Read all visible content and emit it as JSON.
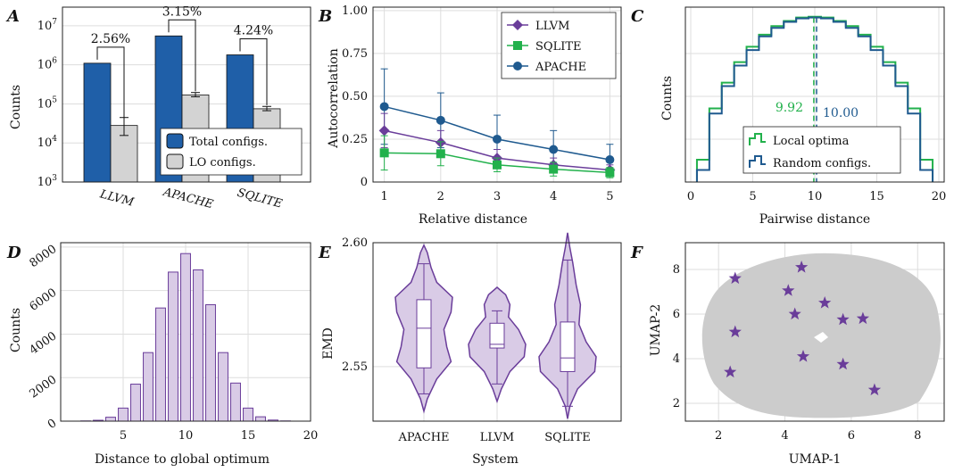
{
  "colors": {
    "blue": "#1f5fa8",
    "gray": "#d3d3d3",
    "purple": "#6a3d9a",
    "green": "#22b14c",
    "navy": "#1f5a8f",
    "umap_gray": "#cccccc",
    "violin_fill": "#d9cbe6"
  },
  "chart_data": [
    {
      "panel": "A",
      "type": "bar",
      "ylabel": "Counts",
      "yscale": "log",
      "ylim": [
        1000,
        30000000
      ],
      "yticks": [
        "10^3",
        "10^4",
        "10^5",
        "10^6",
        "10^7"
      ],
      "categories": [
        "LLVM",
        "APACHE",
        "SQLITE"
      ],
      "series": [
        {
          "name": "Total configs.",
          "values": [
            1100000,
            5500000,
            1800000
          ]
        },
        {
          "name": "LO configs.",
          "values": [
            28000,
            170000,
            75000
          ]
        }
      ],
      "annotations": [
        "2.56%",
        "3.15%",
        "4.24%"
      ],
      "legend": "bottom-right"
    },
    {
      "panel": "B",
      "type": "line",
      "xlabel": "Relative distance",
      "ylabel": "Autocorrelation",
      "x": [
        1,
        2,
        3,
        4,
        5
      ],
      "xlim": [
        0.8,
        5.2
      ],
      "ylim": [
        0,
        1.02
      ],
      "yticks": [
        "0",
        "0.25",
        "0.50",
        "0.75",
        "1.00"
      ],
      "series": [
        {
          "name": "LLVM",
          "values": [
            0.3,
            0.23,
            0.14,
            0.1,
            0.07
          ],
          "err": [
            0.1,
            0.07,
            0.05,
            0.04,
            0.03
          ]
        },
        {
          "name": "SQLITE",
          "values": [
            0.17,
            0.165,
            0.1,
            0.075,
            0.055
          ],
          "err": [
            0.1,
            0.07,
            0.04,
            0.04,
            0.03
          ]
        },
        {
          "name": "APACHE",
          "values": [
            0.44,
            0.36,
            0.25,
            0.19,
            0.13
          ],
          "err": [
            0.22,
            0.16,
            0.14,
            0.11,
            0.09
          ]
        }
      ],
      "legend": "top-right"
    },
    {
      "panel": "C",
      "type": "area",
      "xlabel": "Pairwise distance",
      "ylabel": "Counts",
      "xlim": [
        0,
        20
      ],
      "bins": [
        1,
        2,
        3,
        4,
        5,
        6,
        7,
        8,
        9,
        10,
        11,
        12,
        13,
        14,
        15,
        16,
        17,
        18,
        19
      ],
      "series": [
        {
          "name": "Local optima",
          "values": [
            0.13,
            0.43,
            0.58,
            0.7,
            0.79,
            0.86,
            0.91,
            0.94,
            0.96,
            0.965,
            0.96,
            0.94,
            0.91,
            0.86,
            0.79,
            0.7,
            0.58,
            0.43,
            0.13
          ],
          "mean": "9.92"
        },
        {
          "name": "Random configs.",
          "values": [
            0.07,
            0.4,
            0.56,
            0.68,
            0.77,
            0.85,
            0.9,
            0.935,
            0.955,
            0.96,
            0.955,
            0.935,
            0.9,
            0.85,
            0.77,
            0.68,
            0.56,
            0.4,
            0.07
          ],
          "mean": "10.00"
        }
      ],
      "legend": "bottom-center"
    },
    {
      "panel": "D",
      "type": "bar",
      "xlabel": "Distance to global optimum",
      "ylabel": "Counts",
      "xlim": [
        0,
        20
      ],
      "ylim": [
        0,
        8200
      ],
      "bins": [
        2,
        3,
        4,
        5,
        6,
        7,
        8,
        9,
        10,
        11,
        12,
        13,
        14,
        15,
        16,
        17,
        18
      ],
      "values": [
        10,
        40,
        180,
        600,
        1700,
        3150,
        5200,
        6850,
        7700,
        6950,
        5350,
        3150,
        1750,
        600,
        200,
        50,
        10
      ]
    },
    {
      "panel": "E",
      "type": "violin",
      "xlabel": "System",
      "ylabel": "EMD",
      "ylim": [
        2.528,
        2.6
      ],
      "yticks": [
        "2.55",
        "2.60"
      ],
      "categories": [
        "APACHE",
        "LLVM",
        "SQLITE"
      ],
      "boxes": [
        {
          "q1": 2.5495,
          "median": 2.5655,
          "q3": 2.577,
          "wlo": 2.539,
          "whi": 2.5915
        },
        {
          "q1": 2.5575,
          "median": 2.559,
          "q3": 2.5675,
          "wlo": 2.543,
          "whi": 2.5725
        },
        {
          "q1": 2.548,
          "median": 2.5535,
          "q3": 2.568,
          "wlo": 2.534,
          "whi": 2.593
        }
      ]
    },
    {
      "panel": "F",
      "type": "scatter",
      "xlabel": "UMAP-1",
      "ylabel": "UMAP-2",
      "xlim": [
        1,
        8.8
      ],
      "ylim": [
        1.2,
        9.2
      ],
      "xticks": [
        "2",
        "4",
        "6",
        "8"
      ],
      "yticks": [
        "2",
        "4",
        "6",
        "8"
      ],
      "points": [
        [
          2.5,
          7.6
        ],
        [
          4.5,
          8.1
        ],
        [
          4.1,
          7.05
        ],
        [
          5.2,
          6.5
        ],
        [
          4.3,
          6.0
        ],
        [
          5.75,
          5.75
        ],
        [
          6.35,
          5.8
        ],
        [
          2.5,
          5.2
        ],
        [
          4.55,
          4.1
        ],
        [
          5.75,
          3.75
        ],
        [
          2.35,
          3.4
        ],
        [
          6.7,
          2.6
        ]
      ]
    }
  ]
}
